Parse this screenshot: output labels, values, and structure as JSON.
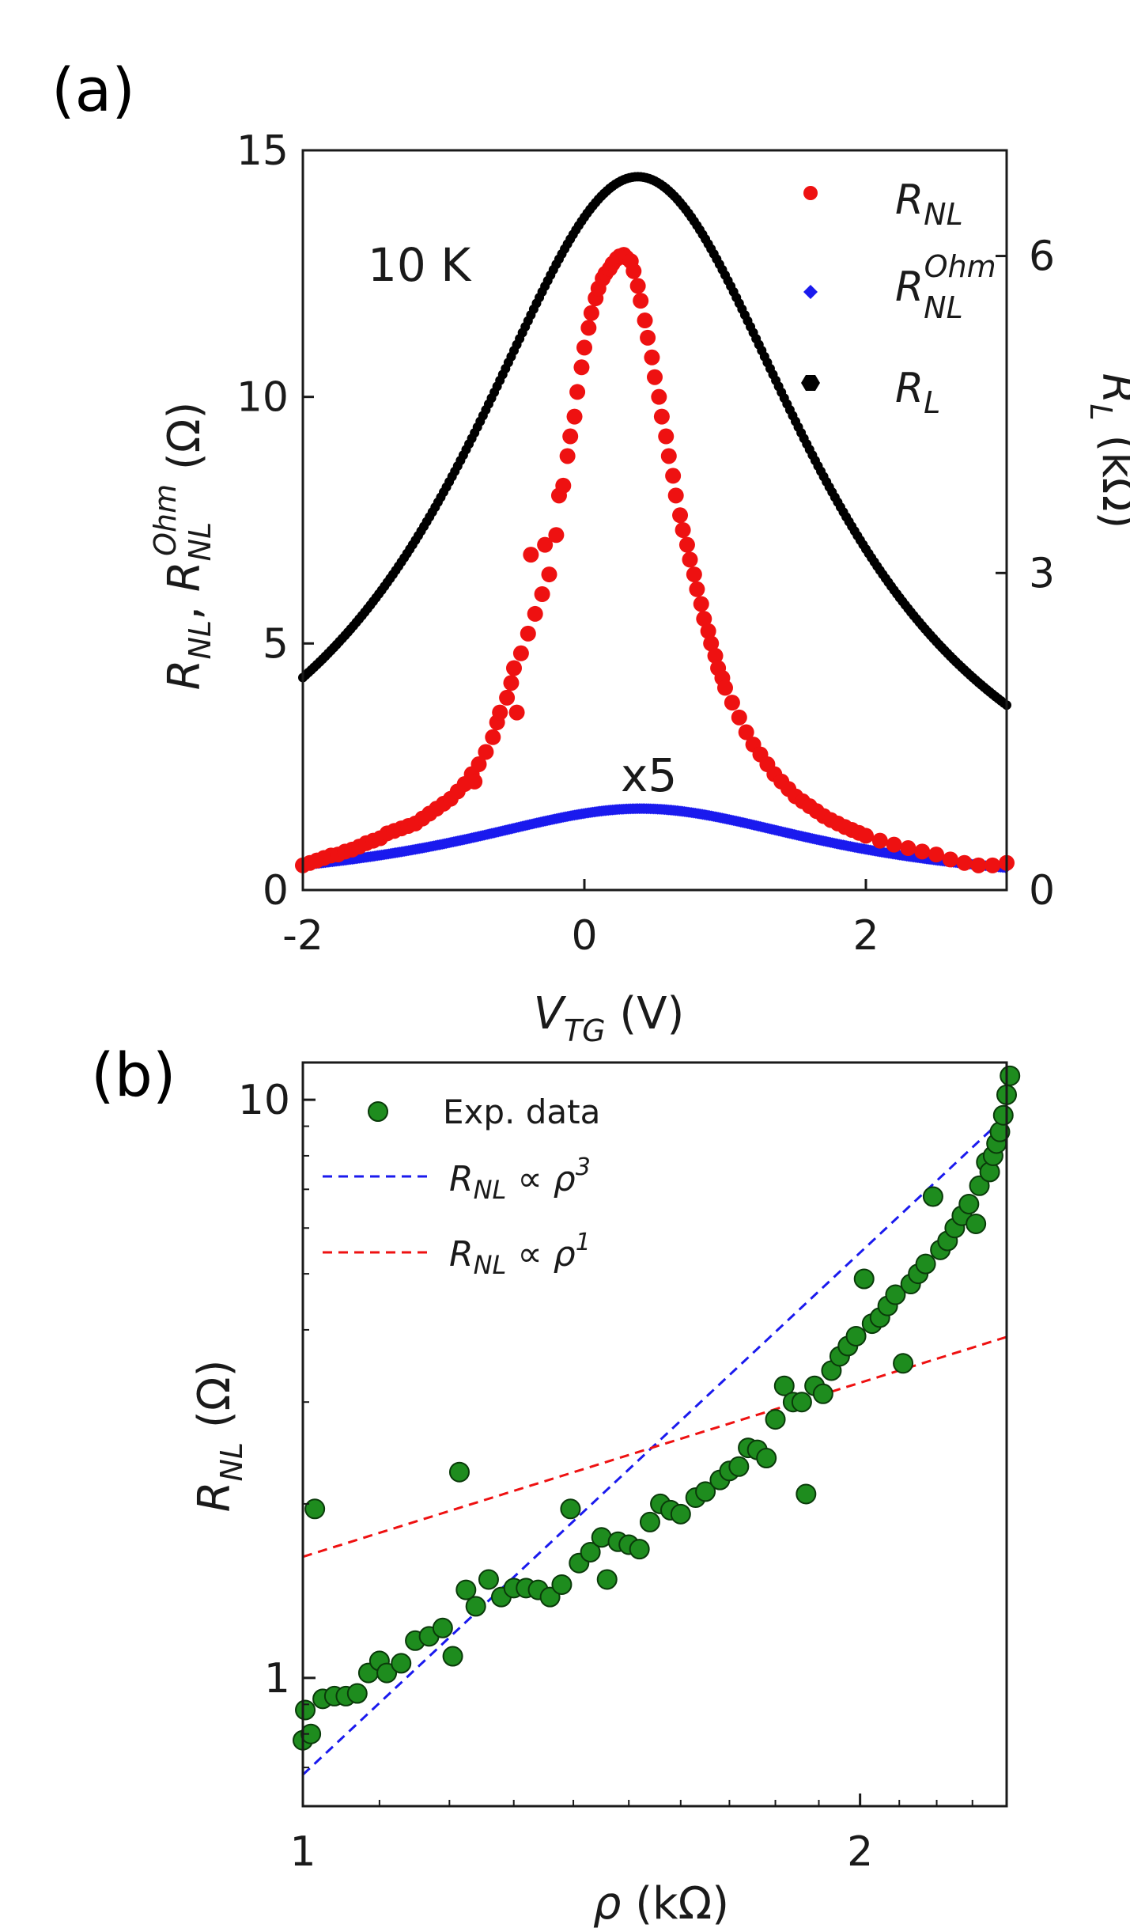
{
  "chart_data": [
    {
      "id": "a",
      "panel_label": "(a)",
      "type": "scatter",
      "annotation_temp": "10 K",
      "annotation_scale": "x5",
      "x_range": [
        -2,
        3
      ],
      "x_ticks": [
        -2,
        0,
        2
      ],
      "x_label": {
        "main": "V",
        "sub": "TG",
        "unit": " (V)"
      },
      "y_left": {
        "range": [
          0,
          15
        ],
        "ticks": [
          0,
          5,
          10,
          15
        ],
        "label_text": "R_NL, R_NL^Ohm (Ω)"
      },
      "y_right": {
        "range": [
          0,
          7
        ],
        "ticks": [
          0,
          3,
          6
        ],
        "label_main": "R",
        "label_sub": "L",
        "label_unit": " (kΩ)"
      },
      "legend": [
        {
          "name": "R_NL",
          "main": "R",
          "sub": "NL",
          "sup": "",
          "color": "#ee1111",
          "marker": "circle"
        },
        {
          "name": "R_NL^Ohm",
          "main": "R",
          "sub": "NL",
          "sup": "Ohm",
          "color": "#1a1aee",
          "marker": "diamond"
        },
        {
          "name": "R_L",
          "main": "R",
          "sub": "L",
          "sup": "",
          "color": "#000000",
          "marker": "hexagon"
        }
      ],
      "series": [
        {
          "name": "R_L",
          "axis": "right",
          "model": "lorentzian",
          "peak_x": 0.38,
          "peak": 6.75,
          "width": 1.55,
          "baseline": 0.0,
          "x_start": -2,
          "x_end": 3,
          "step": 0.02,
          "color": "#000000"
        },
        {
          "name": "R_NL^Ohm x5",
          "axis": "left",
          "model": "lorentzian",
          "peak_x": 0.4,
          "peak": 1.65,
          "width": 1.6,
          "baseline": 0.0,
          "x_start": -2,
          "x_end": 3,
          "step": 0.01,
          "color": "#1a1aee"
        },
        {
          "name": "R_NL",
          "axis": "left",
          "color": "#ee1111",
          "points": [
            [
              -2.0,
              0.5
            ],
            [
              -1.95,
              0.55
            ],
            [
              -1.9,
              0.6
            ],
            [
              -1.85,
              0.65
            ],
            [
              -1.8,
              0.7
            ],
            [
              -1.75,
              0.72
            ],
            [
              -1.7,
              0.78
            ],
            [
              -1.65,
              0.82
            ],
            [
              -1.6,
              0.88
            ],
            [
              -1.55,
              0.95
            ],
            [
              -1.5,
              1.0
            ],
            [
              -1.45,
              1.05
            ],
            [
              -1.4,
              1.15
            ],
            [
              -1.35,
              1.2
            ],
            [
              -1.3,
              1.25
            ],
            [
              -1.25,
              1.3
            ],
            [
              -1.2,
              1.35
            ],
            [
              -1.15,
              1.45
            ],
            [
              -1.1,
              1.55
            ],
            [
              -1.05,
              1.65
            ],
            [
              -1.0,
              1.75
            ],
            [
              -0.95,
              1.85
            ],
            [
              -0.9,
              2.0
            ],
            [
              -0.85,
              2.15
            ],
            [
              -0.8,
              2.35
            ],
            [
              -0.78,
              2.2
            ],
            [
              -0.75,
              2.55
            ],
            [
              -0.7,
              2.8
            ],
            [
              -0.65,
              3.1
            ],
            [
              -0.62,
              3.4
            ],
            [
              -0.6,
              3.6
            ],
            [
              -0.55,
              3.9
            ],
            [
              -0.52,
              4.2
            ],
            [
              -0.5,
              4.5
            ],
            [
              -0.48,
              3.6
            ],
            [
              -0.45,
              4.8
            ],
            [
              -0.4,
              5.2
            ],
            [
              -0.38,
              6.8
            ],
            [
              -0.35,
              5.6
            ],
            [
              -0.3,
              6.0
            ],
            [
              -0.28,
              7.0
            ],
            [
              -0.25,
              6.4
            ],
            [
              -0.2,
              7.2
            ],
            [
              -0.18,
              8.0
            ],
            [
              -0.15,
              8.2
            ],
            [
              -0.12,
              8.8
            ],
            [
              -0.1,
              9.2
            ],
            [
              -0.07,
              9.6
            ],
            [
              -0.05,
              10.1
            ],
            [
              -0.02,
              10.6
            ],
            [
              0.0,
              11.0
            ],
            [
              0.03,
              11.4
            ],
            [
              0.05,
              11.7
            ],
            [
              0.08,
              12.0
            ],
            [
              0.1,
              12.2
            ],
            [
              0.13,
              12.4
            ],
            [
              0.15,
              12.5
            ],
            [
              0.18,
              12.6
            ],
            [
              0.2,
              12.7
            ],
            [
              0.23,
              12.8
            ],
            [
              0.25,
              12.85
            ],
            [
              0.28,
              12.88
            ],
            [
              0.3,
              12.82
            ],
            [
              0.33,
              12.75
            ],
            [
              0.35,
              12.55
            ],
            [
              0.38,
              12.25
            ],
            [
              0.4,
              11.95
            ],
            [
              0.43,
              11.55
            ],
            [
              0.45,
              11.2
            ],
            [
              0.48,
              10.8
            ],
            [
              0.5,
              10.4
            ],
            [
              0.53,
              10.0
            ],
            [
              0.55,
              9.6
            ],
            [
              0.58,
              9.2
            ],
            [
              0.6,
              8.8
            ],
            [
              0.63,
              8.4
            ],
            [
              0.65,
              8.0
            ],
            [
              0.68,
              7.6
            ],
            [
              0.7,
              7.3
            ],
            [
              0.73,
              7.0
            ],
            [
              0.75,
              6.7
            ],
            [
              0.78,
              6.4
            ],
            [
              0.8,
              6.1
            ],
            [
              0.83,
              5.8
            ],
            [
              0.85,
              5.5
            ],
            [
              0.88,
              5.25
            ],
            [
              0.9,
              5.0
            ],
            [
              0.93,
              4.75
            ],
            [
              0.95,
              4.5
            ],
            [
              0.98,
              4.3
            ],
            [
              1.0,
              4.1
            ],
            [
              1.05,
              3.8
            ],
            [
              1.1,
              3.5
            ],
            [
              1.15,
              3.2
            ],
            [
              1.2,
              2.95
            ],
            [
              1.25,
              2.75
            ],
            [
              1.3,
              2.55
            ],
            [
              1.35,
              2.35
            ],
            [
              1.4,
              2.2
            ],
            [
              1.45,
              2.05
            ],
            [
              1.5,
              1.9
            ],
            [
              1.55,
              1.8
            ],
            [
              1.6,
              1.7
            ],
            [
              1.65,
              1.6
            ],
            [
              1.7,
              1.5
            ],
            [
              1.75,
              1.42
            ],
            [
              1.8,
              1.35
            ],
            [
              1.85,
              1.28
            ],
            [
              1.9,
              1.22
            ],
            [
              1.95,
              1.16
            ],
            [
              2.0,
              1.1
            ],
            [
              2.1,
              1.0
            ],
            [
              2.2,
              0.92
            ],
            [
              2.3,
              0.85
            ],
            [
              2.4,
              0.78
            ],
            [
              2.5,
              0.72
            ],
            [
              2.6,
              0.62
            ],
            [
              2.7,
              0.55
            ],
            [
              2.8,
              0.5
            ],
            [
              2.9,
              0.5
            ],
            [
              3.0,
              0.55
            ]
          ]
        }
      ]
    },
    {
      "id": "b",
      "panel_label": "(b)",
      "type": "scatter",
      "x_scale": "log",
      "y_scale": "log",
      "x_range": [
        1.0,
        2.4
      ],
      "y_range": [
        0.6,
        11.6
      ],
      "x_ticks": [
        1,
        2
      ],
      "x_minor_ticks": [
        1.1,
        1.2,
        1.3,
        1.4,
        1.5,
        1.6,
        1.7,
        1.8,
        1.9,
        2.1,
        2.2,
        2.3,
        2.4
      ],
      "y_ticks": [
        1,
        10
      ],
      "y_minor_ticks": [
        0.7,
        0.8,
        0.9,
        2,
        3,
        4,
        5,
        6,
        7,
        8,
        9
      ],
      "x_label": {
        "main": "ρ",
        "unit": " (kΩ)"
      },
      "y_label": {
        "main": "R",
        "sub": "NL",
        "unit": " (Ω)"
      },
      "legend": [
        {
          "name": "Exp. data",
          "color": "#1e8c1e",
          "marker": "circle"
        },
        {
          "name": "R_NL ∝ ρ^3",
          "main": "R",
          "sub": "NL",
          "rel": " ∝ ",
          "var": "ρ",
          "sup": "3",
          "color": "#1a1aee",
          "style": "dashed"
        },
        {
          "name": "R_NL ∝ ρ^1",
          "main": "R",
          "sub": "NL",
          "rel": " ∝ ",
          "var": "ρ",
          "sup": "1",
          "color": "#ee1111",
          "style": "dashed"
        }
      ],
      "fits": [
        {
          "name": "rho^3",
          "exponent": 3,
          "coef": 0.68,
          "color": "#1a1aee"
        },
        {
          "name": "rho^1",
          "exponent": 1,
          "coef": 1.62,
          "color": "#ee1111"
        }
      ],
      "points": [
        [
          1.0,
          0.78
        ],
        [
          1.003,
          0.88
        ],
        [
          1.01,
          0.8
        ],
        [
          1.015,
          1.96
        ],
        [
          1.025,
          0.92
        ],
        [
          1.04,
          0.93
        ],
        [
          1.055,
          0.93
        ],
        [
          1.07,
          0.94
        ],
        [
          1.085,
          1.02
        ],
        [
          1.1,
          1.07
        ],
        [
          1.11,
          1.02
        ],
        [
          1.13,
          1.06
        ],
        [
          1.15,
          1.16
        ],
        [
          1.17,
          1.18
        ],
        [
          1.19,
          1.22
        ],
        [
          1.205,
          1.09
        ],
        [
          1.215,
          2.27
        ],
        [
          1.225,
          1.42
        ],
        [
          1.24,
          1.33
        ],
        [
          1.26,
          1.48
        ],
        [
          1.28,
          1.38
        ],
        [
          1.3,
          1.43
        ],
        [
          1.32,
          1.43
        ],
        [
          1.34,
          1.42
        ],
        [
          1.36,
          1.38
        ],
        [
          1.38,
          1.45
        ],
        [
          1.395,
          1.96
        ],
        [
          1.41,
          1.58
        ],
        [
          1.43,
          1.65
        ],
        [
          1.45,
          1.75
        ],
        [
          1.46,
          1.48
        ],
        [
          1.48,
          1.72
        ],
        [
          1.5,
          1.7
        ],
        [
          1.52,
          1.67
        ],
        [
          1.54,
          1.86
        ],
        [
          1.56,
          2.0
        ],
        [
          1.58,
          1.95
        ],
        [
          1.6,
          1.92
        ],
        [
          1.63,
          2.05
        ],
        [
          1.65,
          2.1
        ],
        [
          1.68,
          2.2
        ],
        [
          1.7,
          2.28
        ],
        [
          1.72,
          2.32
        ],
        [
          1.74,
          2.5
        ],
        [
          1.76,
          2.48
        ],
        [
          1.78,
          2.4
        ],
        [
          1.8,
          2.8
        ],
        [
          1.82,
          3.2
        ],
        [
          1.84,
          3.0
        ],
        [
          1.86,
          3.0
        ],
        [
          1.87,
          2.08
        ],
        [
          1.89,
          3.2
        ],
        [
          1.91,
          3.1
        ],
        [
          1.93,
          3.4
        ],
        [
          1.95,
          3.6
        ],
        [
          1.97,
          3.75
        ],
        [
          1.99,
          3.9
        ],
        [
          2.01,
          4.9
        ],
        [
          2.03,
          4.1
        ],
        [
          2.05,
          4.2
        ],
        [
          2.07,
          4.4
        ],
        [
          2.09,
          4.6
        ],
        [
          2.11,
          3.5
        ],
        [
          2.13,
          4.8
        ],
        [
          2.15,
          5.0
        ],
        [
          2.17,
          5.2
        ],
        [
          2.19,
          6.8
        ],
        [
          2.21,
          5.5
        ],
        [
          2.23,
          5.7
        ],
        [
          2.25,
          6.0
        ],
        [
          2.27,
          6.3
        ],
        [
          2.29,
          6.6
        ],
        [
          2.31,
          6.1
        ],
        [
          2.32,
          7.1
        ],
        [
          2.34,
          7.8
        ],
        [
          2.35,
          7.5
        ],
        [
          2.36,
          8.0
        ],
        [
          2.37,
          8.4
        ],
        [
          2.38,
          8.8
        ],
        [
          2.39,
          9.4
        ],
        [
          2.4,
          10.2
        ],
        [
          2.41,
          11.0
        ]
      ]
    }
  ]
}
